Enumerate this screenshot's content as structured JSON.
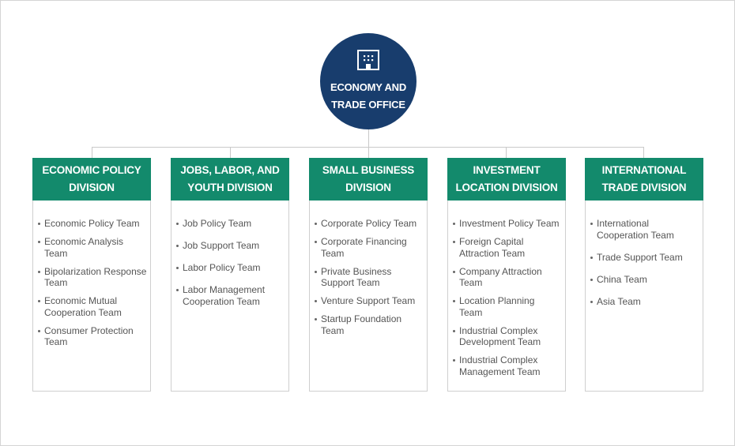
{
  "root": {
    "title": "ECONOMY AND\nTRADE OFFICE",
    "icon": "building-icon"
  },
  "colors": {
    "root": "#183d6d",
    "division_header": "#138a6c",
    "line": "#c9c9c9"
  },
  "divisions": [
    {
      "title": "ECONOMIC POLICY\nDIVISION",
      "teams": [
        "Economic Policy Team",
        "Economic Analysis Team",
        "Bipolarization Response\nTeam",
        "Economic Mutual\nCooperation Team",
        "Consumer Protection\nTeam"
      ]
    },
    {
      "title": "JOBS, LABOR, AND\nYOUTH DIVISION",
      "teams": [
        "Job Policy Team",
        "Job Support Team",
        "Labor Policy Team",
        "Labor Management\nCooperation Team"
      ]
    },
    {
      "title": "SMALL BUSINESS\nDIVISION",
      "teams": [
        "Corporate Policy Team",
        "Corporate Financing\nTeam",
        "Private Business\nSupport Team",
        "Venture Support Team",
        "Startup Foundation\nTeam"
      ]
    },
    {
      "title": "INVESTMENT\nLOCATION DIVISION",
      "teams": [
        "Investment Policy Team",
        "Foreign Capital\nAttraction Team",
        "Company Attraction\n Team",
        "Location Planning\nTeam",
        "Industrial Complex\nDevelopment Team",
        "Industrial Complex\nManagement Team"
      ]
    },
    {
      "title": "INTERNATIONAL\nTRADE DIVISION",
      "teams": [
        "International\nCooperation Team",
        "Trade Support Team",
        "China Team",
        "Asia Team"
      ]
    }
  ]
}
